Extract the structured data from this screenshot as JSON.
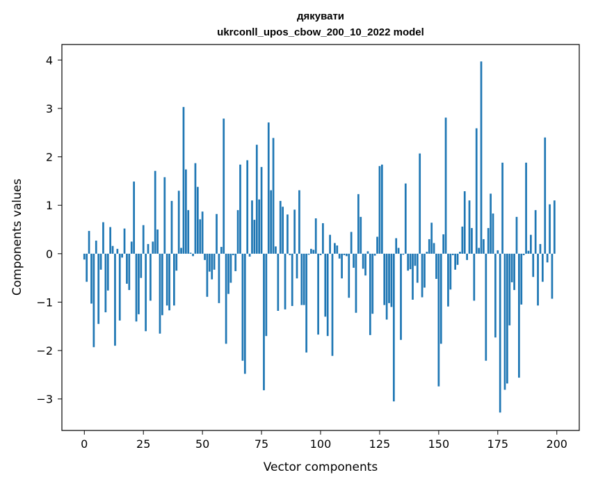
{
  "chart_data": {
    "type": "bar",
    "title": "дякувати",
    "subtitle": "ukrconll_upos_cbow_200_10_2022 model",
    "xlabel": "Vector components",
    "ylabel": "Components values",
    "xlim": [
      -9.5,
      209.5
    ],
    "ylim": [
      -3.65,
      4.32
    ],
    "xticks": [
      0,
      25,
      50,
      75,
      100,
      125,
      150,
      175,
      200
    ],
    "xtick_labels": [
      "0",
      "25",
      "50",
      "75",
      "100",
      "125",
      "150",
      "175",
      "200"
    ],
    "yticks": [
      -3,
      -2,
      -1,
      0,
      1,
      2,
      3,
      4
    ],
    "ytick_labels": [
      "−3",
      "−2",
      "−1",
      "0",
      "1",
      "2",
      "3",
      "4"
    ],
    "bar_color": "#1f77b4",
    "grid": false,
    "values": [
      -0.12,
      -0.58,
      0.47,
      -1.03,
      -1.93,
      0.27,
      -1.45,
      -0.33,
      0.65,
      -1.21,
      -0.76,
      0.55,
      0.16,
      -1.9,
      0.1,
      -1.38,
      -0.08,
      0.52,
      -0.62,
      -0.75,
      0.25,
      1.49,
      -1.4,
      -1.25,
      -0.5,
      0.59,
      -1.6,
      0.2,
      -0.97,
      0.25,
      1.71,
      0.5,
      -1.65,
      -1.27,
      1.58,
      -1.07,
      -1.17,
      1.09,
      -1.07,
      -0.35,
      1.3,
      0.12,
      3.03,
      1.74,
      0.9,
      0.02,
      -0.05,
      1.87,
      1.38,
      0.71,
      0.87,
      -0.13,
      -0.89,
      -0.37,
      -0.53,
      -0.33,
      0.82,
      -1.02,
      0.14,
      2.79,
      -1.86,
      -0.83,
      -0.6,
      -0.03,
      -0.36,
      0.9,
      1.84,
      -2.21,
      -2.48,
      1.93,
      -0.06,
      1.1,
      0.7,
      2.25,
      1.12,
      1.79,
      -2.82,
      -1.7,
      2.71,
      1.31,
      2.39,
      0.15,
      -1.18,
      1.09,
      0.97,
      -1.15,
      0.81,
      -0.03,
      -1.08,
      0.91,
      -0.51,
      1.31,
      -1.06,
      -1.06,
      -2.04,
      -0.02,
      0.1,
      0.08,
      0.73,
      -1.67,
      -0.03,
      0.63,
      -1.3,
      -1.7,
      0.39,
      -2.11,
      0.22,
      0.17,
      -0.1,
      -0.51,
      -0.03,
      -0.05,
      -0.91,
      0.45,
      -0.29,
      -1.22,
      1.23,
      0.76,
      -0.31,
      -0.45,
      0.05,
      -1.68,
      -1.24,
      -0.04,
      0.35,
      1.81,
      1.84,
      -1.06,
      -1.36,
      -1.02,
      -1.1,
      -3.05,
      0.32,
      0.12,
      -1.78,
      -0.02,
      1.45,
      -0.35,
      -0.32,
      -0.95,
      -0.25,
      -0.6,
      2.07,
      -0.9,
      -0.7,
      0.04,
      0.3,
      0.64,
      0.22,
      -0.52,
      -2.74,
      -1.86,
      0.4,
      2.81,
      -1.09,
      -0.74,
      -0.03,
      -0.33,
      -0.23,
      0.04,
      0.56,
      1.29,
      -0.13,
      1.1,
      0.53,
      -0.97,
      2.59,
      0.12,
      3.97,
      0.3,
      -2.21,
      0.53,
      1.24,
      0.83,
      -1.73,
      0.07,
      -3.28,
      1.88,
      -2.81,
      -2.68,
      -1.48,
      -0.59,
      -0.75,
      0.76,
      -2.56,
      -1.05,
      -0.03,
      1.88,
      0.06,
      0.39,
      -0.48,
      0.9,
      -1.07,
      0.2,
      -0.58,
      2.4,
      -0.18,
      1.02,
      -0.93,
      1.1
    ]
  }
}
